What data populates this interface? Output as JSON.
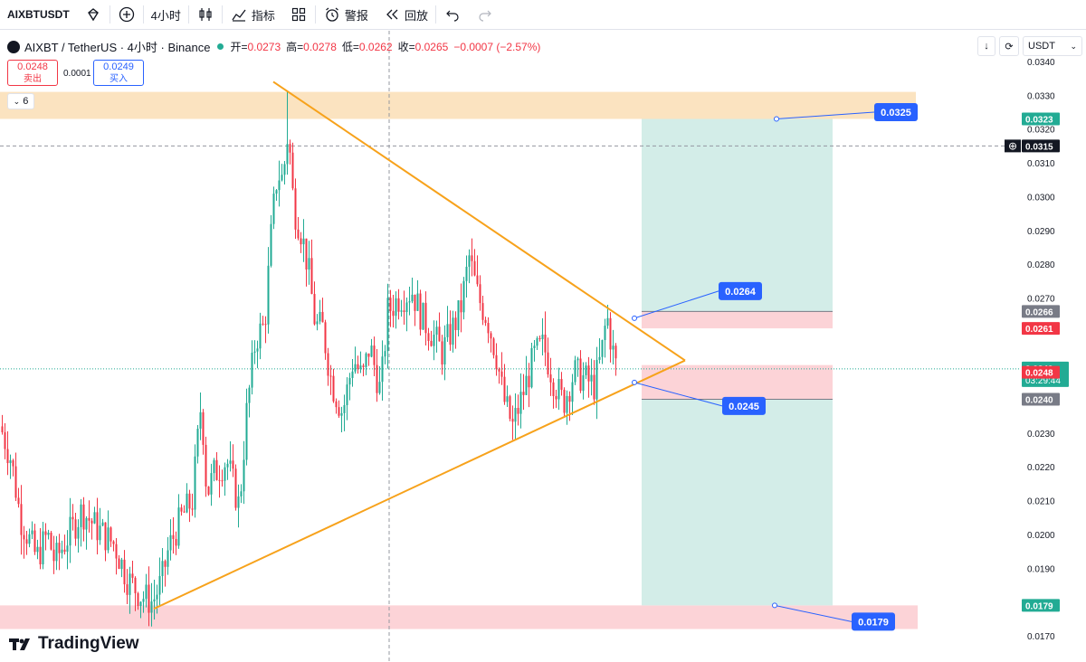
{
  "toolbar": {
    "symbol": "AIXBTUSDT",
    "interval": "4小时",
    "indicators_label": "指标",
    "alert_label": "警报",
    "replay_label": "回放"
  },
  "legend": {
    "title": "AIXBT / TetherUS · 4小时 · Binance",
    "open_label": "开=",
    "open": "0.0273",
    "high_label": "高=",
    "high": "0.0278",
    "low_label": "低=",
    "low": "0.0262",
    "close_label": "收=",
    "close": "0.0265",
    "change": "−0.0007 (−2.57%)"
  },
  "trade": {
    "sell_price": "0.0248",
    "sell_label": "卖出",
    "spread": "0.0001",
    "buy_price": "0.0249",
    "buy_label": "买入"
  },
  "collapse_count": "6",
  "currency": "USDT",
  "brand": "TradingView",
  "colors": {
    "up": "#22ab94",
    "down": "#f23645",
    "triangle": "#f7a21b",
    "accent": "#2962ff"
  },
  "chart_data": {
    "type": "candlestick",
    "symbol": "AIXBT / TetherUS",
    "interval": "4小时",
    "exchange": "Binance",
    "y_axis": {
      "min": 0.0165,
      "max": 0.0343,
      "ticks": [
        "0.0340",
        "0.0330",
        "0.0320",
        "0.0310",
        "0.0300",
        "0.0290",
        "0.0280",
        "0.0270",
        "0.0230",
        "0.0220",
        "0.0210",
        "0.0200",
        "0.0190",
        "0.0180",
        "0.0170"
      ]
    },
    "price_badges": [
      {
        "label": "0.0323",
        "price": 0.0323,
        "color": "#22ab94"
      },
      {
        "label": "0.0315",
        "price": 0.0315,
        "color": "#131722"
      },
      {
        "label": "0.0266",
        "price": 0.0266,
        "color": "#787b86"
      },
      {
        "label": "0.0261",
        "price": 0.0261,
        "color": "#f23645"
      },
      {
        "label": "0.0249",
        "price": 0.0249,
        "color": "#22ab94",
        "sub": "03:29:44"
      },
      {
        "label": "0.0248",
        "price": 0.0248,
        "color": "#f23645"
      },
      {
        "label": "0.0240",
        "price": 0.024,
        "color": "#787b86"
      },
      {
        "label": "0.0179",
        "price": 0.0179,
        "color": "#22ab94"
      }
    ],
    "callouts": [
      {
        "label": "0.0325",
        "price": 0.0325
      },
      {
        "label": "0.0264",
        "price": 0.0264
      },
      {
        "label": "0.0245",
        "price": 0.0245
      },
      {
        "label": "0.0179",
        "price": 0.0179
      }
    ],
    "zones": [
      {
        "name": "resistance",
        "from": 0.0323,
        "to": 0.0331,
        "color": "#fbe3c0"
      },
      {
        "name": "support",
        "from": 0.0172,
        "to": 0.0179,
        "color": "#fcd3d7"
      }
    ],
    "positions": [
      {
        "name": "long",
        "entry": 0.0266,
        "stop": 0.0261,
        "target": 0.0323
      },
      {
        "name": "short",
        "entry": 0.0248,
        "stop": 0.024,
        "target": 0.0179
      }
    ],
    "triangle": {
      "upper": [
        {
          "bar": 0,
          "price": 0.0334
        },
        {
          "bar": 1,
          "price": 0.0252
        }
      ],
      "lower": [
        {
          "bar": 0,
          "price": 0.0178
        },
        {
          "bar": 1,
          "price": 0.0252
        }
      ]
    },
    "last_price": 0.0249,
    "crosshair_price": 0.0315
  }
}
